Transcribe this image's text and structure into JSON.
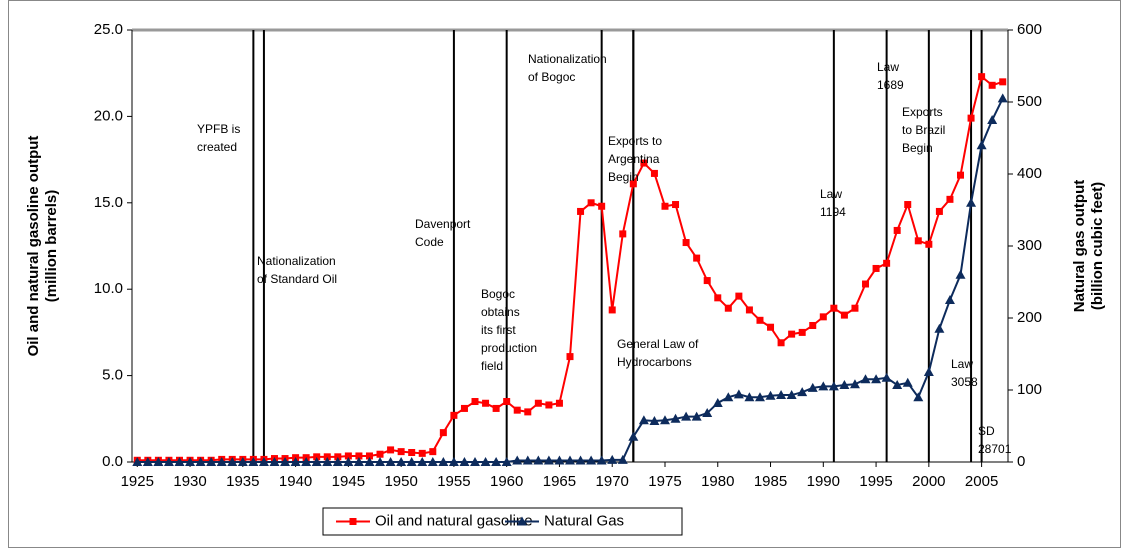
{
  "chart_data": {
    "type": "line",
    "ylabel": [
      "Oil and natural gasoline output",
      "(million barrels)"
    ],
    "y2label": [
      "Natural gas output",
      "(billion cubic feet)"
    ],
    "x": [
      1925,
      1926,
      1927,
      1928,
      1929,
      1930,
      1931,
      1932,
      1933,
      1934,
      1935,
      1936,
      1937,
      1938,
      1939,
      1940,
      1941,
      1942,
      1943,
      1944,
      1945,
      1946,
      1947,
      1948,
      1949,
      1950,
      1951,
      1952,
      1953,
      1954,
      1955,
      1956,
      1957,
      1958,
      1959,
      1960,
      1961,
      1962,
      1963,
      1964,
      1965,
      1966,
      1967,
      1968,
      1969,
      1970,
      1971,
      1972,
      1973,
      1974,
      1975,
      1976,
      1977,
      1978,
      1979,
      1980,
      1981,
      1982,
      1983,
      1984,
      1985,
      1986,
      1987,
      1988,
      1989,
      1990,
      1991,
      1992,
      1993,
      1994,
      1995,
      1996,
      1997,
      1998,
      1999,
      2000,
      2001,
      2002,
      2003,
      2004,
      2005,
      2006,
      2007
    ],
    "series": [
      {
        "name": "Oil and natural gasoline",
        "color": "#ff0000",
        "marker": "square",
        "values": [
          0.1,
          0.1,
          0.1,
          0.1,
          0.1,
          0.1,
          0.1,
          0.1,
          0.15,
          0.15,
          0.15,
          0.15,
          0.15,
          0.2,
          0.2,
          0.25,
          0.25,
          0.3,
          0.3,
          0.3,
          0.35,
          0.35,
          0.35,
          0.45,
          0.7,
          0.6,
          0.55,
          0.5,
          0.6,
          1.7,
          2.7,
          3.1,
          3.5,
          3.4,
          3.1,
          3.5,
          3.0,
          2.9,
          3.4,
          3.3,
          3.4,
          6.1,
          14.5,
          15.0,
          14.8,
          8.8,
          13.2,
          16.1,
          17.3,
          16.7,
          14.8,
          14.9,
          12.7,
          11.8,
          10.5,
          9.5,
          8.9,
          9.6,
          8.8,
          8.2,
          7.8,
          6.9,
          7.4,
          7.5,
          7.9,
          8.4,
          8.9,
          8.5,
          8.9,
          10.3,
          11.2,
          11.5,
          13.4,
          14.9,
          12.8,
          12.6,
          14.5,
          15.2,
          16.6,
          19.9,
          22.3,
          21.8,
          22.0
        ]
      },
      {
        "name": "Natural Gas",
        "color": "#0d2b5c",
        "marker": "triangle",
        "axis": "y2",
        "values": [
          0,
          0,
          0,
          0,
          0,
          0,
          0,
          0,
          0,
          0,
          0,
          0,
          0,
          0,
          0,
          0,
          0,
          0,
          0,
          0,
          0,
          0,
          0,
          0,
          0,
          0,
          0,
          0,
          0,
          0,
          0,
          0,
          0,
          0,
          0,
          0,
          2,
          2,
          2,
          2,
          2,
          2,
          2,
          2,
          2,
          3,
          3,
          35,
          58,
          57,
          58,
          60,
          63,
          63,
          68,
          82,
          90,
          94,
          90,
          90,
          92,
          93,
          93,
          97,
          103,
          105,
          105,
          107,
          108,
          115,
          115,
          117,
          107,
          110,
          90,
          125,
          185,
          225,
          260,
          360,
          440,
          475,
          505
        ]
      }
    ],
    "xlim": [
      1924.5,
      2007.5
    ],
    "xticks": [
      1925,
      1930,
      1935,
      1940,
      1945,
      1950,
      1955,
      1960,
      1965,
      1970,
      1975,
      1980,
      1985,
      1990,
      1995,
      2000,
      2005
    ],
    "ylim": [
      0,
      25
    ],
    "yticks": [
      {
        "value": 0,
        "label": "0.0"
      },
      {
        "value": 5,
        "label": "5.0"
      },
      {
        "value": 10,
        "label": "10.0"
      },
      {
        "value": 15,
        "label": "15.0"
      },
      {
        "value": 20,
        "label": "20.0"
      },
      {
        "value": 25,
        "label": "25.0"
      }
    ],
    "y2lim": [
      0,
      600
    ],
    "y2ticks": [
      0,
      100,
      200,
      300,
      400,
      500,
      600
    ],
    "legend": "bottom",
    "annotations": [
      {
        "lines": [
          "YPFB  is",
          "created"
        ],
        "x": 1936
      },
      {
        "lines": [
          "Nationalization",
          "of Standard Oil"
        ],
        "x": 1937
      },
      {
        "lines": [
          "Davenport",
          "Code"
        ],
        "x": 1955
      },
      {
        "lines": [
          "Bogoc",
          "obtains",
          "its first",
          "production",
          "field"
        ],
        "x": 1960
      },
      {
        "lines": [
          "Nationalization",
          "of Bogoc"
        ],
        "x": 1969
      },
      {
        "lines": [
          "Exports to",
          "Argentina",
          "Begin"
        ],
        "x": 1972
      },
      {
        "lines": [
          "General Law of",
          "Hydrocarbons"
        ],
        "x": 1972
      },
      {
        "lines": [
          "Law",
          "1194"
        ],
        "x": 1991
      },
      {
        "lines": [
          "Law",
          "1689"
        ],
        "x": 1996
      },
      {
        "lines": [
          "Exports",
          "to Brazil",
          "Begin"
        ],
        "x": 2000
      },
      {
        "lines": [
          "Law",
          "3058"
        ],
        "x": 2004
      },
      {
        "lines": [
          "SD",
          "28701"
        ],
        "x": 2005
      }
    ]
  }
}
